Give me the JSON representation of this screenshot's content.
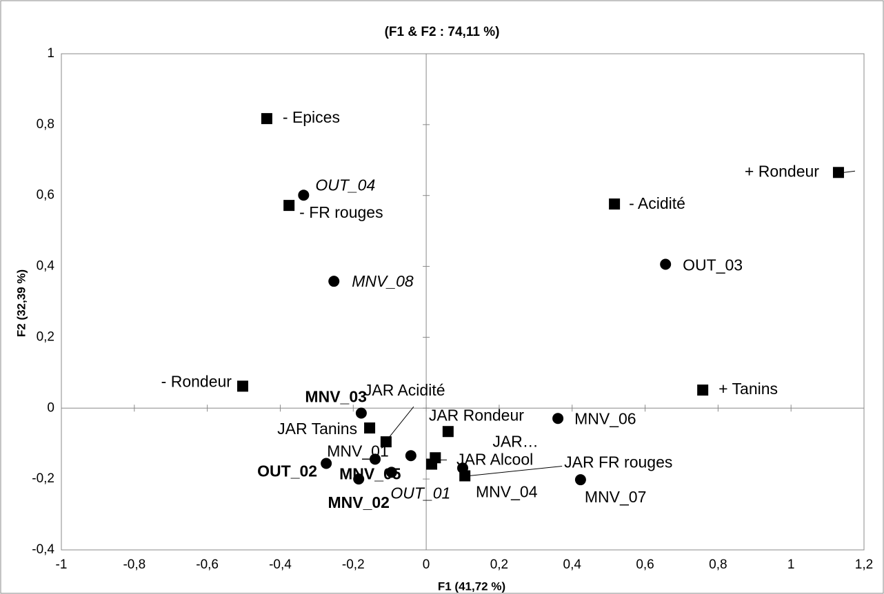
{
  "chart_data": {
    "type": "scatter",
    "title": "(F1 & F2 : 74,11 %)",
    "xlabel": "F1 (41,72 %)",
    "ylabel": "F2 (32,39 %)",
    "xlim": [
      -1,
      1.2
    ],
    "ylim": [
      -0.4,
      1
    ],
    "xticks": [
      -1,
      {
        "value": -0.8,
        "label": "-0,8"
      },
      {
        "value": -0.6,
        "label": "-0,6"
      },
      {
        "value": -0.4,
        "label": "-0,4"
      },
      {
        "value": -0.2,
        "label": "-0,2"
      },
      0,
      {
        "value": 0.2,
        "label": "0,2"
      },
      {
        "value": 0.4,
        "label": "0,4"
      },
      {
        "value": 0.6,
        "label": "0,6"
      },
      {
        "value": 0.8,
        "label": "0,8"
      },
      1,
      {
        "value": 1.2,
        "label": "1,2"
      }
    ],
    "yticks": [
      {
        "value": -0.4,
        "label": "-0,4"
      },
      {
        "value": -0.2,
        "label": "-0,2"
      },
      0,
      {
        "value": 0.2,
        "label": "0,2"
      },
      {
        "value": 0.4,
        "label": "0,4"
      },
      {
        "value": 0.6,
        "label": "0,6"
      },
      {
        "value": 0.8,
        "label": "0,8"
      },
      1
    ],
    "series": [
      {
        "marker": "square",
        "color": "#000000",
        "labels": [
          "- Epices",
          "- FR rouges",
          "- Acidité",
          "+ Rondeur",
          "- Rondeur",
          "+ Tanins",
          "JAR Tanins",
          "JAR Acidité",
          "JAR Rondeur",
          "JAR…",
          "JAR Alcool",
          "JAR FR rouges"
        ],
        "x": [
          -0.437,
          -0.376,
          0.516,
          1.13,
          -0.503,
          0.758,
          -0.155,
          -0.11,
          0.06,
          0.025,
          0.015,
          0.106
        ],
        "values": [
          0.817,
          0.572,
          0.576,
          0.665,
          0.062,
          0.051,
          -0.056,
          -0.095,
          -0.066,
          -0.14,
          -0.158,
          -0.191
        ]
      },
      {
        "marker": "circle",
        "color": "#000000",
        "labels": [
          "OUT_04",
          "MNV_08",
          "OUT_03",
          "MNV_03",
          "MNV_06",
          "MNV_01",
          "OUT_01",
          "MNV_05",
          "MNV_02",
          "OUT_02",
          "MNV_04",
          "MNV_07"
        ],
        "x": [
          -0.336,
          -0.253,
          0.656,
          -0.178,
          0.361,
          -0.14,
          -0.042,
          -0.095,
          -0.185,
          -0.274,
          0.1,
          0.423
        ],
        "values": [
          0.601,
          0.358,
          0.406,
          -0.014,
          -0.029,
          -0.144,
          -0.134,
          -0.181,
          -0.2,
          -0.156,
          -0.169,
          -0.202
        ]
      }
    ]
  }
}
